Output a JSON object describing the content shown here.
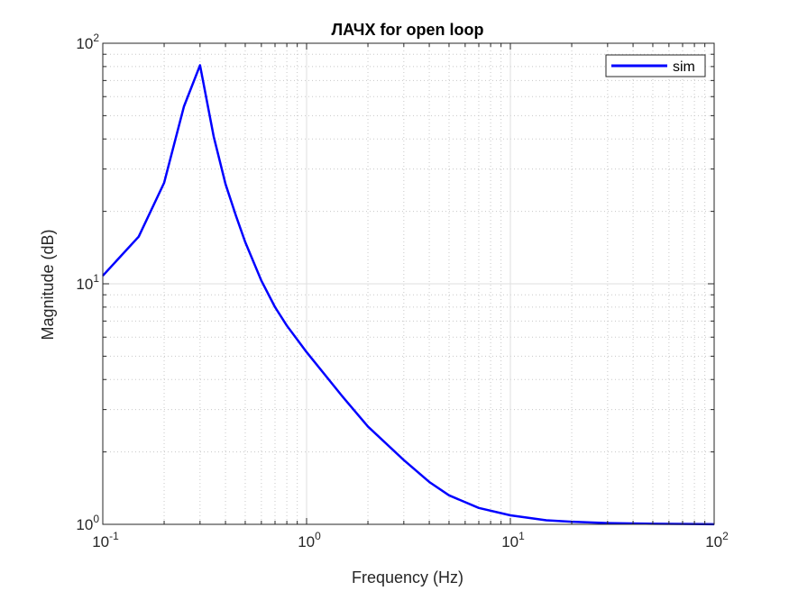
{
  "chart_data": {
    "type": "line",
    "title": "ЛАЧХ for open loop",
    "xlabel": "Frequency (Hz)",
    "ylabel": "Magnitude (dB)",
    "xscale": "log",
    "yscale": "log",
    "xlim": [
      0.1,
      100
    ],
    "ylim": [
      1,
      100
    ],
    "x_ticks": [
      {
        "base": "10",
        "exp": "-1",
        "value": 0.1
      },
      {
        "base": "10",
        "exp": "0",
        "value": 1
      },
      {
        "base": "10",
        "exp": "1",
        "value": 10
      },
      {
        "base": "10",
        "exp": "2",
        "value": 100
      }
    ],
    "y_ticks": [
      {
        "base": "10",
        "exp": "0",
        "value": 1
      },
      {
        "base": "10",
        "exp": "1",
        "value": 10
      },
      {
        "base": "10",
        "exp": "2",
        "value": 100
      }
    ],
    "grid": true,
    "minor_grid": true,
    "legend_position": "top-right",
    "series": [
      {
        "name": "sim",
        "color": "#0000ff",
        "x": [
          0.1,
          0.15,
          0.2,
          0.25,
          0.3,
          0.35,
          0.4,
          0.45,
          0.5,
          0.6,
          0.7,
          0.8,
          1.0,
          1.5,
          2.0,
          3.0,
          4.0,
          5.0,
          7.0,
          10.0,
          15.0,
          20.0,
          30.0,
          50.0,
          100.0
        ],
        "y": [
          10.8,
          15.7,
          26.3,
          54.5,
          81.0,
          41.0,
          26.0,
          19.2,
          14.9,
          10.3,
          8.0,
          6.7,
          5.2,
          3.4,
          2.55,
          1.85,
          1.5,
          1.32,
          1.17,
          1.09,
          1.04,
          1.025,
          1.012,
          1.005,
          1.001
        ]
      }
    ]
  }
}
